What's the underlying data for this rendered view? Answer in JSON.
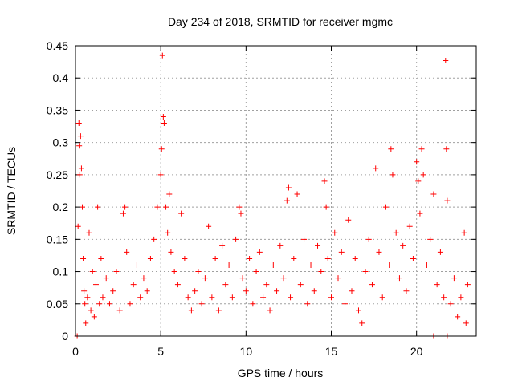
{
  "chart_data": {
    "type": "scatter",
    "title": "Day 234 of 2018, SRMTID for receiver mgmc",
    "xlabel": "GPS time / hours",
    "ylabel": "SRMTID / TECUs",
    "xlim": [
      0,
      23.5
    ],
    "ylim": [
      0,
      0.45
    ],
    "xticks": [
      0,
      5,
      10,
      15,
      20
    ],
    "yticks": [
      0,
      0.05,
      0.1,
      0.15,
      0.2,
      0.25,
      0.3,
      0.35,
      0.4,
      0.45
    ],
    "ytick_labels": [
      "0",
      "0.05",
      "0.1",
      "0.15",
      "0.2",
      "0.25",
      "0.3",
      "0.35",
      "0.4",
      "0.45"
    ],
    "grid": true,
    "marker": "plus",
    "series": [
      {
        "name": "SRMTID",
        "color": "#ff0000",
        "points": [
          [
            0.1,
            0.0
          ],
          [
            0.15,
            0.17
          ],
          [
            0.2,
            0.33
          ],
          [
            0.22,
            0.295
          ],
          [
            0.25,
            0.25
          ],
          [
            0.3,
            0.31
          ],
          [
            0.35,
            0.26
          ],
          [
            0.4,
            0.2
          ],
          [
            0.45,
            0.12
          ],
          [
            0.5,
            0.07
          ],
          [
            0.55,
            0.05
          ],
          [
            0.6,
            0.02
          ],
          [
            0.7,
            0.06
          ],
          [
            0.8,
            0.16
          ],
          [
            0.9,
            0.04
          ],
          [
            1.0,
            0.1
          ],
          [
            1.1,
            0.03
          ],
          [
            1.2,
            0.08
          ],
          [
            1.3,
            0.2
          ],
          [
            1.4,
            0.05
          ],
          [
            1.5,
            0.12
          ],
          [
            1.6,
            0.06
          ],
          [
            1.8,
            0.09
          ],
          [
            2.0,
            0.05
          ],
          [
            2.2,
            0.07
          ],
          [
            2.4,
            0.1
          ],
          [
            2.6,
            0.04
          ],
          [
            2.8,
            0.19
          ],
          [
            2.9,
            0.2
          ],
          [
            3.0,
            0.13
          ],
          [
            3.2,
            0.05
          ],
          [
            3.4,
            0.08
          ],
          [
            3.6,
            0.11
          ],
          [
            3.8,
            0.06
          ],
          [
            4.0,
            0.09
          ],
          [
            4.2,
            0.07
          ],
          [
            4.4,
            0.12
          ],
          [
            4.6,
            0.15
          ],
          [
            4.8,
            0.2
          ],
          [
            5.0,
            0.25
          ],
          [
            5.05,
            0.29
          ],
          [
            5.1,
            0.435
          ],
          [
            5.15,
            0.34
          ],
          [
            5.2,
            0.33
          ],
          [
            5.3,
            0.2
          ],
          [
            5.4,
            0.16
          ],
          [
            5.5,
            0.22
          ],
          [
            5.6,
            0.13
          ],
          [
            5.8,
            0.1
          ],
          [
            6.0,
            0.08
          ],
          [
            6.2,
            0.19
          ],
          [
            6.4,
            0.12
          ],
          [
            6.6,
            0.06
          ],
          [
            6.8,
            0.04
          ],
          [
            7.0,
            0.07
          ],
          [
            7.2,
            0.1
          ],
          [
            7.4,
            0.05
          ],
          [
            7.6,
            0.09
          ],
          [
            7.8,
            0.17
          ],
          [
            8.0,
            0.06
          ],
          [
            8.2,
            0.12
          ],
          [
            8.4,
            0.04
          ],
          [
            8.6,
            0.14
          ],
          [
            8.8,
            0.08
          ],
          [
            9.0,
            0.11
          ],
          [
            9.2,
            0.06
          ],
          [
            9.4,
            0.15
          ],
          [
            9.6,
            0.2
          ],
          [
            9.7,
            0.19
          ],
          [
            9.8,
            0.09
          ],
          [
            10.0,
            0.07
          ],
          [
            10.2,
            0.12
          ],
          [
            10.4,
            0.05
          ],
          [
            10.6,
            0.1
          ],
          [
            10.8,
            0.13
          ],
          [
            11.0,
            0.06
          ],
          [
            11.2,
            0.08
          ],
          [
            11.4,
            0.04
          ],
          [
            11.6,
            0.11
          ],
          [
            11.8,
            0.07
          ],
          [
            12.0,
            0.14
          ],
          [
            12.2,
            0.09
          ],
          [
            12.4,
            0.21
          ],
          [
            12.5,
            0.23
          ],
          [
            12.6,
            0.06
          ],
          [
            12.8,
            0.12
          ],
          [
            13.0,
            0.22
          ],
          [
            13.2,
            0.08
          ],
          [
            13.4,
            0.15
          ],
          [
            13.6,
            0.05
          ],
          [
            13.8,
            0.11
          ],
          [
            14.0,
            0.07
          ],
          [
            14.2,
            0.14
          ],
          [
            14.4,
            0.1
          ],
          [
            14.6,
            0.24
          ],
          [
            14.7,
            0.2
          ],
          [
            14.8,
            0.12
          ],
          [
            15.0,
            0.06
          ],
          [
            15.2,
            0.16
          ],
          [
            15.4,
            0.09
          ],
          [
            15.6,
            0.13
          ],
          [
            15.8,
            0.05
          ],
          [
            16.0,
            0.18
          ],
          [
            16.2,
            0.07
          ],
          [
            16.4,
            0.12
          ],
          [
            16.6,
            0.04
          ],
          [
            16.8,
            0.02
          ],
          [
            17.0,
            0.1
          ],
          [
            17.2,
            0.15
          ],
          [
            17.4,
            0.08
          ],
          [
            17.6,
            0.26
          ],
          [
            17.8,
            0.13
          ],
          [
            18.0,
            0.06
          ],
          [
            18.2,
            0.2
          ],
          [
            18.4,
            0.11
          ],
          [
            18.5,
            0.29
          ],
          [
            18.6,
            0.25
          ],
          [
            18.8,
            0.16
          ],
          [
            19.0,
            0.09
          ],
          [
            19.2,
            0.14
          ],
          [
            19.4,
            0.07
          ],
          [
            19.6,
            0.17
          ],
          [
            19.8,
            0.12
          ],
          [
            20.0,
            0.27
          ],
          [
            20.1,
            0.24
          ],
          [
            20.2,
            0.19
          ],
          [
            20.3,
            0.29
          ],
          [
            20.4,
            0.25
          ],
          [
            20.6,
            0.11
          ],
          [
            20.8,
            0.15
          ],
          [
            21.0,
            0.0
          ],
          [
            21.0,
            0.22
          ],
          [
            21.2,
            0.08
          ],
          [
            21.4,
            0.13
          ],
          [
            21.6,
            0.06
          ],
          [
            21.7,
            0.427
          ],
          [
            21.75,
            0.29
          ],
          [
            21.8,
            0.21
          ],
          [
            21.8,
            0.0
          ],
          [
            22.0,
            0.05
          ],
          [
            22.2,
            0.09
          ],
          [
            22.4,
            0.03
          ],
          [
            22.6,
            0.06
          ],
          [
            22.8,
            0.16
          ],
          [
            22.9,
            0.02
          ],
          [
            23.0,
            0.08
          ]
        ]
      }
    ]
  }
}
